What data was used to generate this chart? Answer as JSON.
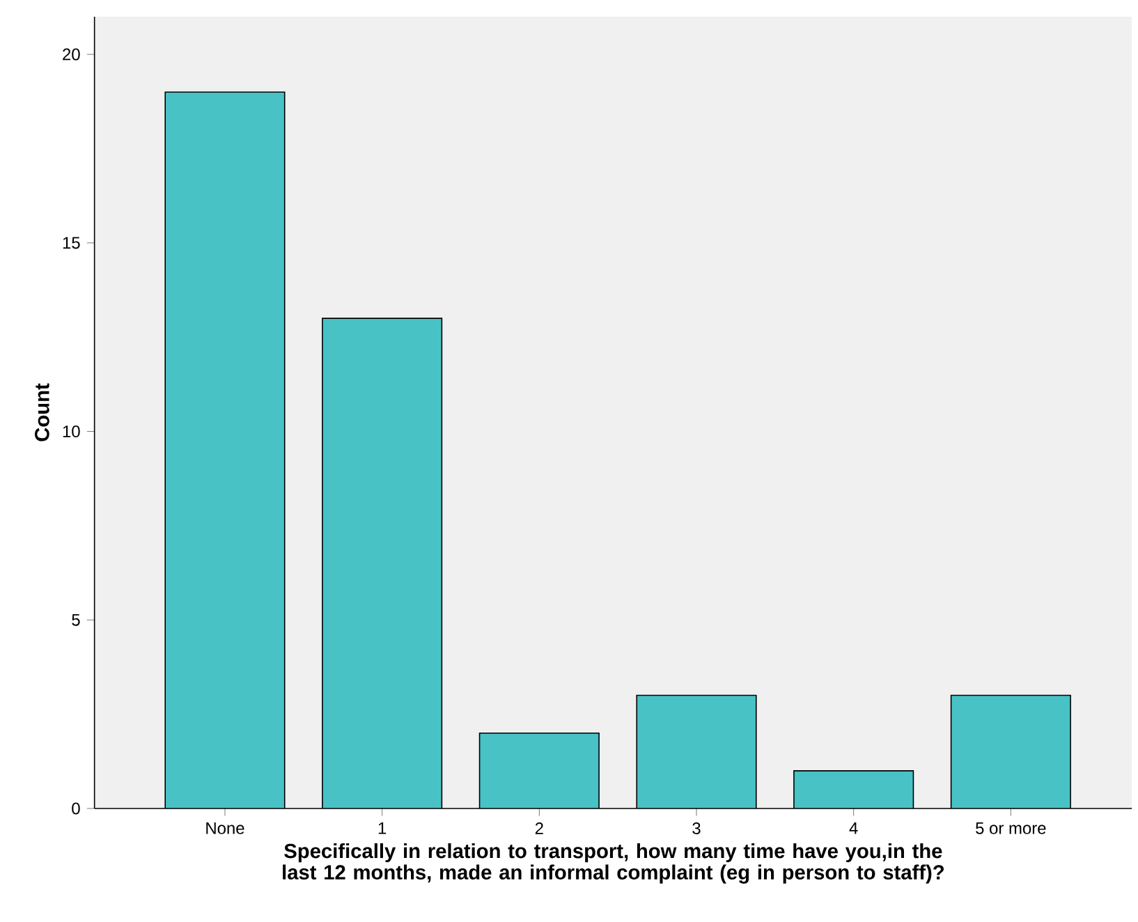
{
  "chart_data": {
    "type": "bar",
    "xlabel": "Specifically in relation to transport, how many time have you,in the last 12 months, made an informal complaint (eg in person to staff)?",
    "ylabel": "Count",
    "categories": [
      "None",
      "1",
      "2",
      "3",
      "4",
      "5 or more"
    ],
    "values": [
      19,
      13,
      2,
      3,
      1,
      3
    ],
    "color": "#48c2c5",
    "ylim": [
      0,
      21
    ],
    "yticks": [
      0,
      5,
      10,
      15,
      20
    ]
  }
}
